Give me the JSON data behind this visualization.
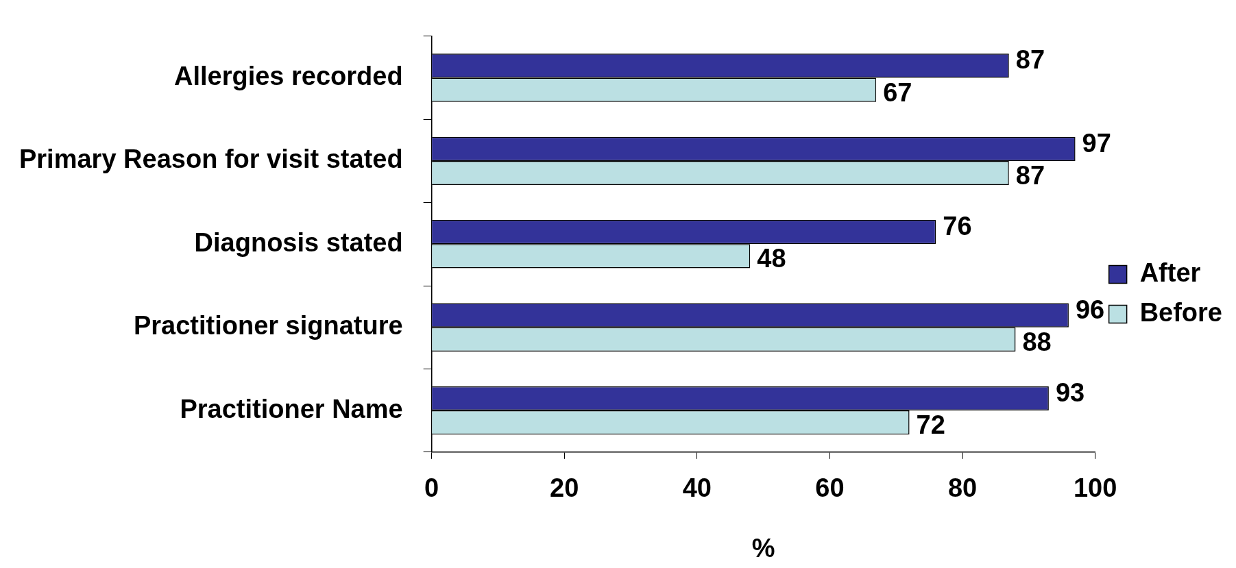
{
  "chart_data": {
    "type": "bar",
    "orientation": "horizontal",
    "xlabel": "%",
    "categories": [
      "Allergies recorded",
      "Primary Reason for visit stated",
      "Diagnosis stated",
      "Practitioner signature",
      "Practitioner Name"
    ],
    "series": [
      {
        "name": "After",
        "color": "#333399",
        "values": [
          87,
          97,
          76,
          96,
          93
        ]
      },
      {
        "name": "Before",
        "color": "#bbe0e3",
        "values": [
          67,
          87,
          48,
          88,
          72
        ]
      }
    ],
    "xlim": [
      0,
      100
    ],
    "xticks": [
      0,
      20,
      40,
      60,
      80,
      100
    ],
    "data_labels": true,
    "legend": "right",
    "grid": false
  }
}
